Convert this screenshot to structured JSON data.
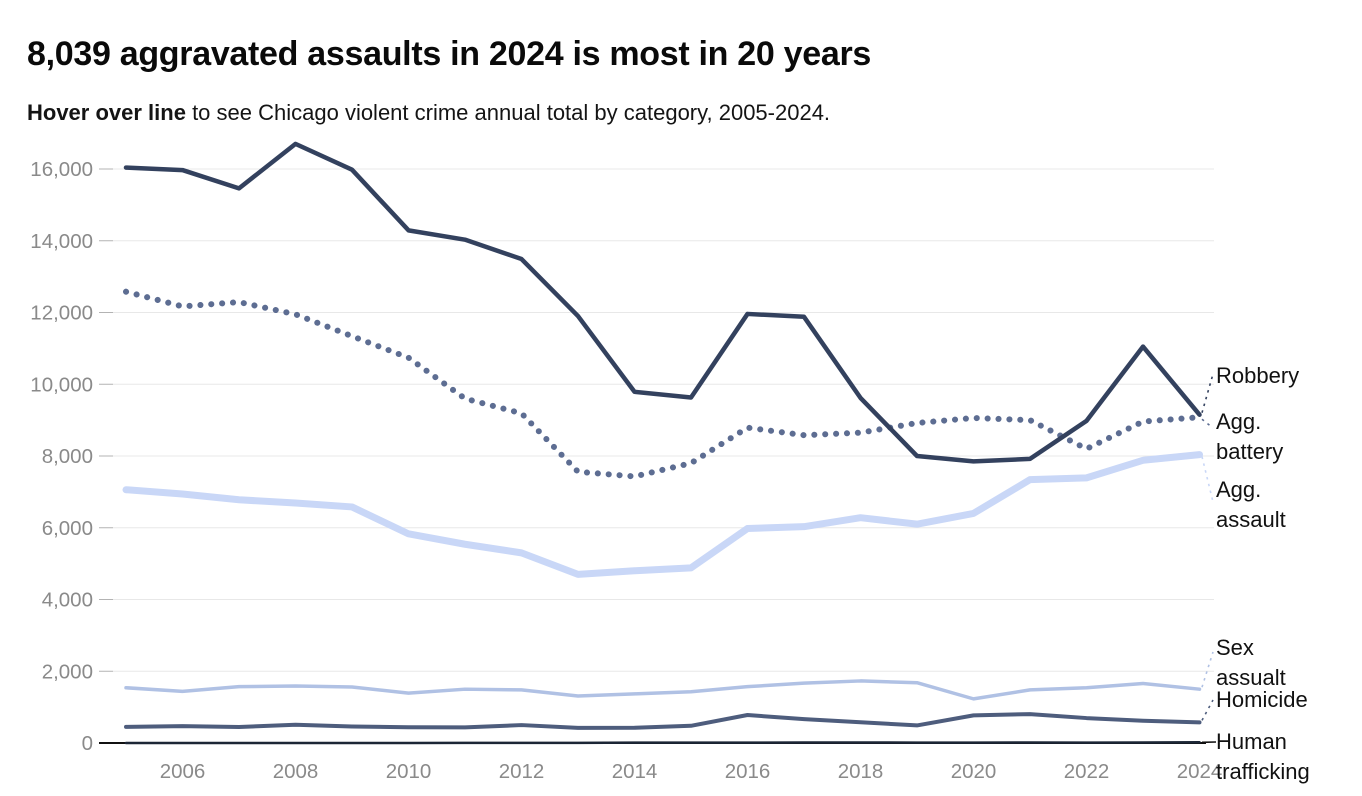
{
  "header": {
    "title": "8,039 aggravated assaults in 2024 is most in 20 years",
    "subtitle_bold": "Hover over line",
    "subtitle_rest": " to see Chicago violent crime annual total by category, 2005-2024."
  },
  "colors": {
    "robbery": "#33415e",
    "agg_battery": "#5d6d92",
    "agg_assault": "#c9d7f7",
    "sex_assault": "#b0c1e4",
    "homicide": "#4e5d7d",
    "human_trafficking": "#1c2636",
    "axis_line": "#111111",
    "gridline": "#e8e8e8",
    "tick_stub": "#b3b3b3",
    "tick_text": "#8a8a8a",
    "label_text": "#121212"
  },
  "chart_data": {
    "type": "line",
    "title": "8,039 aggravated assaults in 2024 is most in 20 years",
    "xlabel": "",
    "ylabel": "",
    "grid": true,
    "legend_position": "right-annotations",
    "x": [
      2005,
      2006,
      2007,
      2008,
      2009,
      2010,
      2011,
      2012,
      2013,
      2014,
      2015,
      2016,
      2017,
      2018,
      2019,
      2020,
      2021,
      2022,
      2023,
      2024
    ],
    "xticks": [
      2006,
      2008,
      2010,
      2012,
      2014,
      2016,
      2018,
      2020,
      2022,
      2024
    ],
    "ylim": [
      0,
      16000
    ],
    "yticks": [
      0,
      2000,
      4000,
      6000,
      8000,
      10000,
      12000,
      14000,
      16000
    ],
    "series": [
      {
        "name": "Robbery",
        "style": "solid",
        "width": 4.5,
        "color": "#33415e",
        "values": [
          16040,
          15970,
          15460,
          16700,
          15980,
          14290,
          14030,
          13490,
          11900,
          9790,
          9630,
          11960,
          11880,
          9620,
          8000,
          7850,
          7920,
          8980,
          11050,
          9150
        ]
      },
      {
        "name": "Agg. battery",
        "style": "dotted",
        "width": 6,
        "color": "#5d6d92",
        "values": [
          12580,
          12170,
          12290,
          11950,
          11340,
          10740,
          9600,
          9190,
          7560,
          7430,
          7800,
          8790,
          8580,
          8650,
          8920,
          9060,
          9000,
          8200,
          8960,
          9080
        ]
      },
      {
        "name": "Agg. assault",
        "style": "solid",
        "width": 7,
        "color": "#c9d7f7",
        "values": [
          7060,
          6940,
          6780,
          6690,
          6580,
          5830,
          5540,
          5300,
          4700,
          4800,
          4880,
          5980,
          6030,
          6280,
          6100,
          6400,
          7340,
          7390,
          7880,
          8039
        ]
      },
      {
        "name": "Sex assualt",
        "style": "solid",
        "width": 3.5,
        "color": "#b0c1e4",
        "values": [
          1540,
          1440,
          1570,
          1590,
          1560,
          1390,
          1500,
          1480,
          1310,
          1370,
          1430,
          1570,
          1670,
          1730,
          1680,
          1230,
          1480,
          1540,
          1660,
          1500
        ]
      },
      {
        "name": "Homicide",
        "style": "solid",
        "width": 4,
        "color": "#4e5d7d",
        "values": [
          450,
          470,
          445,
          510,
          460,
          440,
          435,
          500,
          420,
          425,
          480,
          780,
          665,
          580,
          490,
          770,
          805,
          695,
          620,
          575
        ]
      },
      {
        "name": "Human trafficking",
        "style": "solid",
        "width": 2.5,
        "color": "#1c2636",
        "values": [
          0,
          0,
          0,
          0,
          0,
          0,
          5,
          5,
          5,
          10,
          10,
          10,
          15,
          15,
          10,
          10,
          15,
          10,
          15,
          20
        ]
      }
    ]
  },
  "annotations": [
    {
      "series": "Robbery",
      "text": "Robbery"
    },
    {
      "series": "Agg. battery",
      "text": "Agg.\nbattery"
    },
    {
      "series": "Agg. assault",
      "text": "Agg.\nassault"
    },
    {
      "series": "Sex assualt",
      "text": "Sex\nassualt"
    },
    {
      "series": "Homicide",
      "text": "Homicide"
    },
    {
      "series": "Human trafficking",
      "text": "Human\ntrafficking"
    }
  ]
}
